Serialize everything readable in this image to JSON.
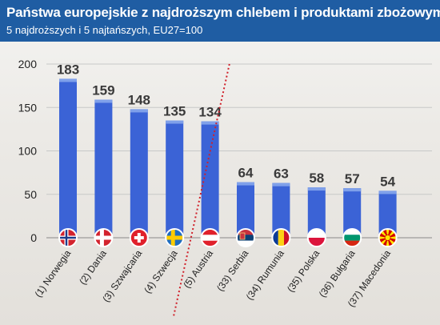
{
  "header": {
    "title": "Państwa europejskie z najdroższym chlebem i produktami zbożowymi",
    "subtitle": "5 najdroższych i 5 najtańszych, EU27=100"
  },
  "chart_data": {
    "type": "bar",
    "title": "Państwa europejskie z najdroższym chlebem i produktami zbożowymi",
    "subtitle": "5 najdroższych i 5 najtańszych, EU27=100",
    "categories": [
      "(1) Norwegia",
      "(2) Dania",
      "(3) Szwajcaria",
      "(4) Szwecja",
      "(5) Austria",
      "(33) Serbia",
      "(34) Rumunia",
      "(35) Polska",
      "(36) Bułgaria",
      "(37) Macedonia"
    ],
    "values": [
      183,
      159,
      148,
      135,
      134,
      64,
      63,
      58,
      57,
      54
    ],
    "flags": [
      "norway-flag",
      "denmark-flag",
      "switzerland-flag",
      "sweden-flag",
      "austria-flag",
      "serbia-flag",
      "romania-flag",
      "poland-flag",
      "bulgaria-flag",
      "macedonia-flag"
    ],
    "yticks": [
      0,
      50,
      100,
      150,
      200
    ],
    "ylim": [
      0,
      200
    ],
    "grid": true,
    "bar_color": "#3b63d6",
    "bar_cap_color": "#7fa0ea",
    "separator_color": "#d0202a"
  }
}
